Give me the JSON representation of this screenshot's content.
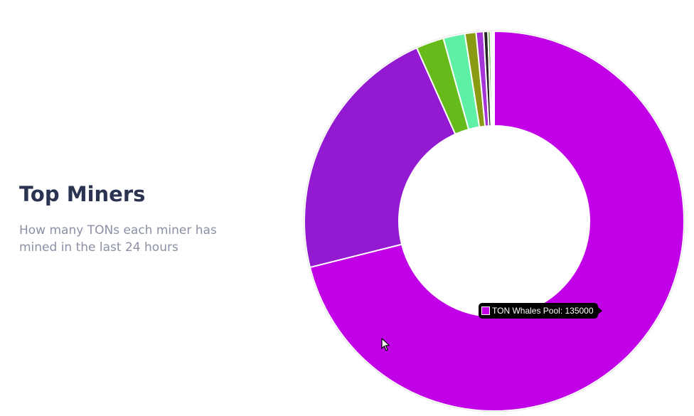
{
  "header": {
    "title": "Top Miners",
    "subtitle": "How many TONs each miner has mined in the last 24 hours"
  },
  "tooltip": {
    "text": "TON Whales Pool: 135000",
    "color": "#c100e8"
  },
  "chart_data": {
    "type": "pie",
    "style": "doughnut",
    "categories": [
      "TON Whales Pool",
      "",
      "",
      "",
      "",
      "",
      "",
      "",
      "",
      ""
    ],
    "values": [
      135000,
      42200,
      4500,
      3500,
      1800,
      1200,
      700,
      400,
      300,
      300
    ],
    "colors": [
      "#c100e8",
      "#941ad2",
      "#66bb1a",
      "#5ef1a6",
      "#8a9a12",
      "#a534d8",
      "#222222",
      "#55aa33",
      "#dddddd",
      "#ffffff"
    ],
    "hovered_category": "TON Whales Pool"
  }
}
